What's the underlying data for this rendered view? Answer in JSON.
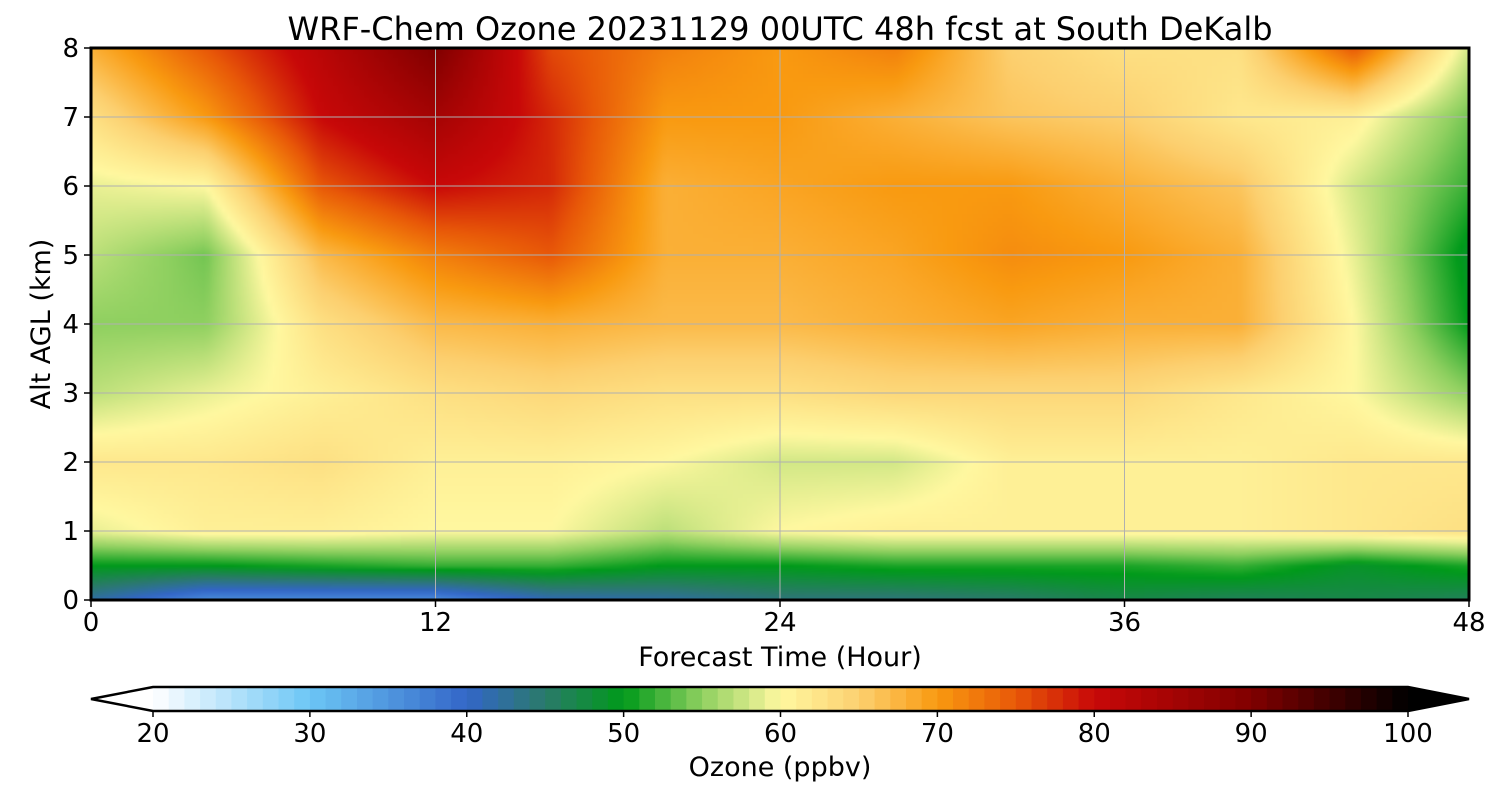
{
  "chart_data": {
    "type": "heatmap",
    "title": "WRF-Chem Ozone  20231129 00UTC 48h fcst at South DeKalb",
    "xlabel": "Forecast Time (Hour)",
    "ylabel": "Alt AGL (km)",
    "xlim": [
      0,
      48
    ],
    "ylim": [
      0,
      8
    ],
    "x_ticks": [
      0,
      12,
      24,
      36,
      48
    ],
    "y_ticks": [
      0,
      1,
      2,
      3,
      4,
      5,
      6,
      7,
      8
    ],
    "grid": true,
    "colorbar": {
      "label": "Ozone  (ppbv)",
      "min": 20,
      "max": 100,
      "ticks": [
        20,
        30,
        40,
        50,
        60,
        70,
        80,
        90,
        100
      ],
      "extend": "both",
      "orientation": "horizontal",
      "placement": "bottom",
      "colors": [
        {
          "v": 20,
          "c": "#ffffff"
        },
        {
          "v": 30,
          "c": "#6cc6f5"
        },
        {
          "v": 40,
          "c": "#3366c8"
        },
        {
          "v": 45,
          "c": "#2a7a6a"
        },
        {
          "v": 50,
          "c": "#009a1a"
        },
        {
          "v": 55,
          "c": "#8fd060"
        },
        {
          "v": 60,
          "c": "#fff8a0"
        },
        {
          "v": 65,
          "c": "#fcd070"
        },
        {
          "v": 70,
          "c": "#f99a10"
        },
        {
          "v": 75,
          "c": "#e85808"
        },
        {
          "v": 80,
          "c": "#c80808"
        },
        {
          "v": 90,
          "c": "#800000"
        },
        {
          "v": 100,
          "c": "#000000"
        }
      ]
    },
    "grid_x": [
      0,
      4,
      8,
      12,
      16,
      20,
      24,
      28,
      32,
      36,
      40,
      44,
      48
    ],
    "grid_y": [
      0,
      0.5,
      1,
      2,
      3,
      4,
      5,
      6,
      7,
      8
    ],
    "values": [
      [
        42,
        36,
        36,
        36,
        41,
        42,
        44,
        44,
        45,
        47,
        46,
        47,
        46
      ],
      [
        50,
        50,
        51,
        52,
        52,
        50,
        50,
        51,
        51,
        51,
        52,
        49,
        51
      ],
      [
        59,
        61,
        61,
        60,
        60,
        57,
        60,
        61,
        61,
        61,
        61,
        62,
        63
      ],
      [
        62,
        62,
        63,
        61,
        61,
        60,
        58,
        58,
        61,
        61,
        61,
        62,
        62
      ],
      [
        57,
        59,
        61,
        63,
        64,
        63,
        63,
        64,
        64,
        64,
        62,
        60,
        55
      ],
      [
        55,
        55,
        63,
        67,
        68,
        67,
        67,
        68,
        69,
        68,
        68,
        60,
        50
      ],
      [
        57,
        54,
        67,
        72,
        75,
        68,
        68,
        69,
        71,
        70,
        68,
        59,
        49
      ],
      [
        59,
        60,
        75,
        80,
        78,
        68,
        69,
        70,
        70,
        68,
        66,
        58,
        52
      ],
      [
        63,
        70,
        80,
        85,
        78,
        70,
        70,
        68,
        66,
        65,
        62,
        61,
        54
      ],
      [
        68,
        75,
        82,
        90,
        76,
        72,
        70,
        72,
        65,
        63,
        63,
        75,
        58
      ]
    ]
  }
}
